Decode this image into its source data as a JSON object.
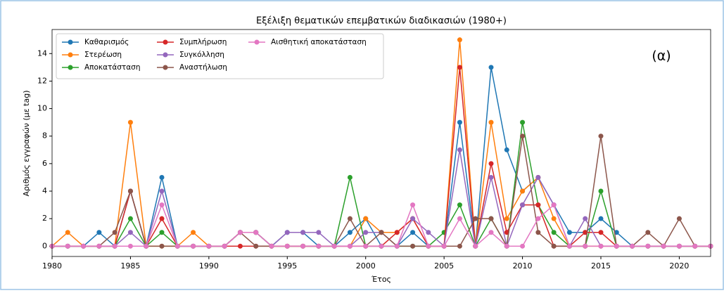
{
  "chart_data": {
    "type": "line",
    "title": "Εξέλιξη θεματικών επεμβατικών διαδικασιών (1980+)",
    "xlabel": "Έτος",
    "ylabel": "Αριθμός εγγραφών (με tag)",
    "annotation": "(α)",
    "x": [
      1980,
      1981,
      1982,
      1983,
      1984,
      1985,
      1986,
      1987,
      1988,
      1989,
      1990,
      1991,
      1992,
      1993,
      1994,
      1995,
      1996,
      1997,
      1998,
      1999,
      2000,
      2001,
      2002,
      2003,
      2004,
      2005,
      2006,
      2007,
      2008,
      2009,
      2010,
      2011,
      2012,
      2013,
      2014,
      2015,
      2016,
      2017,
      2018,
      2019,
      2020,
      2021,
      2022
    ],
    "series": [
      {
        "name": "Καθαρισμός",
        "color": "#1f77b4",
        "values": [
          0,
          0,
          0,
          1,
          0,
          4,
          0,
          5,
          0,
          0,
          0,
          0,
          1,
          1,
          0,
          1,
          1,
          0,
          0,
          1,
          2,
          0,
          0,
          1,
          0,
          0,
          9,
          0,
          13,
          7,
          4,
          5,
          3,
          1,
          1,
          2,
          1,
          0,
          0,
          0,
          0,
          0,
          0
        ]
      },
      {
        "name": "Στερέωση",
        "color": "#ff7f0e",
        "values": [
          0,
          1,
          0,
          0,
          0,
          9,
          0,
          0,
          0,
          1,
          0,
          0,
          1,
          1,
          0,
          0,
          0,
          0,
          0,
          0,
          2,
          1,
          1,
          2,
          0,
          0,
          15,
          0,
          9,
          2,
          4,
          5,
          2,
          0,
          0,
          0,
          0,
          0,
          0,
          0,
          0,
          0,
          0
        ]
      },
      {
        "name": "Αποκατάσταση",
        "color": "#2ca02c",
        "values": [
          0,
          0,
          0,
          0,
          0,
          2,
          0,
          1,
          0,
          0,
          0,
          0,
          1,
          1,
          0,
          0,
          0,
          0,
          0,
          5,
          0,
          0,
          0,
          0,
          0,
          1,
          3,
          0,
          2,
          0,
          9,
          3,
          1,
          0,
          0,
          4,
          0,
          0,
          0,
          0,
          0,
          0,
          0
        ]
      },
      {
        "name": "Συμπλήρωση",
        "color": "#d62728",
        "values": [
          0,
          0,
          0,
          0,
          0,
          4,
          0,
          2,
          0,
          0,
          0,
          0,
          0,
          0,
          0,
          0,
          0,
          0,
          0,
          0,
          0,
          0,
          1,
          2,
          0,
          0,
          13,
          0,
          6,
          1,
          3,
          3,
          0,
          0,
          1,
          1,
          0,
          0,
          0,
          0,
          0,
          0,
          0
        ]
      },
      {
        "name": "Συγκόλληση",
        "color": "#9467bd",
        "values": [
          0,
          0,
          0,
          0,
          0,
          1,
          0,
          4,
          0,
          0,
          0,
          0,
          1,
          1,
          0,
          1,
          1,
          1,
          0,
          0,
          1,
          1,
          0,
          2,
          1,
          0,
          7,
          0,
          5,
          0,
          3,
          5,
          3,
          0,
          2,
          0,
          0,
          0,
          0,
          0,
          0,
          0,
          0
        ]
      },
      {
        "name": "Αναστήλωση",
        "color": "#8c564b",
        "values": [
          0,
          0,
          0,
          0,
          1,
          4,
          0,
          0,
          0,
          0,
          0,
          0,
          1,
          0,
          0,
          0,
          0,
          0,
          0,
          2,
          0,
          1,
          0,
          0,
          0,
          0,
          0,
          2,
          2,
          0,
          8,
          1,
          0,
          0,
          0,
          8,
          0,
          0,
          1,
          0,
          2,
          0,
          0
        ]
      },
      {
        "name": "Αισθητική αποκατάσταση",
        "color": "#e377c2",
        "values": [
          0,
          0,
          0,
          0,
          0,
          0,
          0,
          3,
          0,
          0,
          0,
          0,
          1,
          1,
          0,
          0,
          0,
          0,
          0,
          0,
          0,
          0,
          0,
          3,
          0,
          0,
          2,
          0,
          1,
          0,
          0,
          2,
          3,
          0,
          0,
          0,
          0,
          0,
          0,
          0,
          0,
          0,
          0
        ]
      }
    ],
    "xlim": [
      1980,
      2022
    ],
    "xticks": [
      1980,
      1985,
      1990,
      1995,
      2000,
      2005,
      2010,
      2015,
      2020
    ],
    "ylim": [
      -0.75,
      15.75
    ],
    "yticks": [
      0,
      2,
      4,
      6,
      8,
      10,
      12,
      14
    ],
    "grid": false,
    "legend": "upper left"
  }
}
